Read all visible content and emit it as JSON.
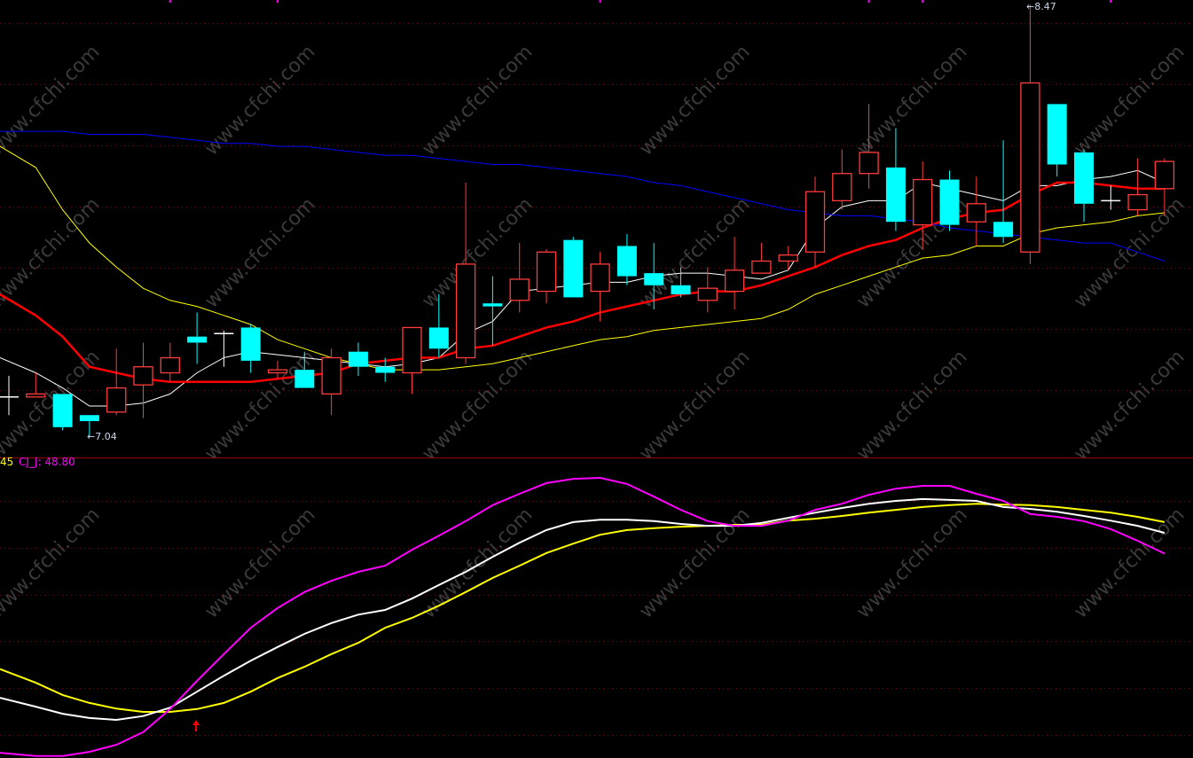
{
  "watermark": "www.cfchi.com",
  "colors": {
    "background": "#000000",
    "grid": "#800000",
    "separator": "#990000",
    "up_candle": "#ff3b3b",
    "down_candle": "#00ffff",
    "doji": "#ffffff",
    "ma_white": "#ffffff",
    "ma_red": "#ff0000",
    "ma_yellow": "#ffff00",
    "ma_blue": "#0000ff",
    "ind_white": "#ffffff",
    "ind_yellow": "#ffff00",
    "ind_magenta": "#ff00ff",
    "signal_arrow": "#ff0000",
    "extreme_label": "#c8d8ee"
  },
  "labels": {
    "high_label": "8.47",
    "low_label": "7.04",
    "arrow_glyph": "←"
  },
  "legend": {
    "yellow_value_text": "45",
    "j_text": "CJ_J: 48.80"
  },
  "chart_data": [
    {
      "type": "candlestick",
      "title": "",
      "candles": [
        {
          "o": 7.17,
          "h": 7.24,
          "l": 7.11,
          "c": 7.17
        },
        {
          "o": 7.17,
          "h": 7.25,
          "l": 7.17,
          "c": 7.18
        },
        {
          "o": 7.18,
          "h": 7.18,
          "l": 7.06,
          "c": 7.07
        },
        {
          "o": 7.11,
          "h": 7.11,
          "l": 7.04,
          "c": 7.09
        },
        {
          "o": 7.12,
          "h": 7.33,
          "l": 7.11,
          "c": 7.2
        },
        {
          "o": 7.21,
          "h": 7.35,
          "l": 7.1,
          "c": 7.27
        },
        {
          "o": 7.25,
          "h": 7.35,
          "l": 7.22,
          "c": 7.3
        },
        {
          "o": 7.37,
          "h": 7.45,
          "l": 7.28,
          "c": 7.35
        },
        {
          "o": 7.38,
          "h": 7.39,
          "l": 7.27,
          "c": 7.38
        },
        {
          "o": 7.4,
          "h": 7.41,
          "l": 7.25,
          "c": 7.29
        },
        {
          "o": 7.25,
          "h": 7.29,
          "l": 7.23,
          "c": 7.26
        },
        {
          "o": 7.26,
          "h": 7.32,
          "l": 7.2,
          "c": 7.2
        },
        {
          "o": 7.18,
          "h": 7.33,
          "l": 7.11,
          "c": 7.3
        },
        {
          "o": 7.32,
          "h": 7.35,
          "l": 7.24,
          "c": 7.27
        },
        {
          "o": 7.27,
          "h": 7.3,
          "l": 7.22,
          "c": 7.25
        },
        {
          "o": 7.25,
          "h": 7.4,
          "l": 7.18,
          "c": 7.4
        },
        {
          "o": 7.4,
          "h": 7.51,
          "l": 7.3,
          "c": 7.33
        },
        {
          "o": 7.3,
          "h": 7.88,
          "l": 7.28,
          "c": 7.61
        },
        {
          "o": 7.48,
          "h": 7.57,
          "l": 7.34,
          "c": 7.47
        },
        {
          "o": 7.49,
          "h": 7.68,
          "l": 7.45,
          "c": 7.56
        },
        {
          "o": 7.52,
          "h": 7.66,
          "l": 7.48,
          "c": 7.65
        },
        {
          "o": 7.69,
          "h": 7.7,
          "l": 7.5,
          "c": 7.5
        },
        {
          "o": 7.52,
          "h": 7.65,
          "l": 7.42,
          "c": 7.61
        },
        {
          "o": 7.67,
          "h": 7.71,
          "l": 7.54,
          "c": 7.57
        },
        {
          "o": 7.58,
          "h": 7.68,
          "l": 7.46,
          "c": 7.54
        },
        {
          "o": 7.54,
          "h": 7.6,
          "l": 7.5,
          "c": 7.51
        },
        {
          "o": 7.49,
          "h": 7.6,
          "l": 7.45,
          "c": 7.53
        },
        {
          "o": 7.52,
          "h": 7.7,
          "l": 7.46,
          "c": 7.59
        },
        {
          "o": 7.58,
          "h": 7.68,
          "l": 7.58,
          "c": 7.62
        },
        {
          "o": 7.62,
          "h": 7.67,
          "l": 7.59,
          "c": 7.64
        },
        {
          "o": 7.65,
          "h": 7.9,
          "l": 7.6,
          "c": 7.85
        },
        {
          "o": 7.82,
          "h": 7.99,
          "l": 7.79,
          "c": 7.91
        },
        {
          "o": 7.91,
          "h": 8.14,
          "l": 7.86,
          "c": 7.98
        },
        {
          "o": 7.93,
          "h": 8.06,
          "l": 7.72,
          "c": 7.75
        },
        {
          "o": 7.74,
          "h": 7.95,
          "l": 7.66,
          "c": 7.89
        },
        {
          "o": 7.89,
          "h": 7.92,
          "l": 7.72,
          "c": 7.74
        },
        {
          "o": 7.75,
          "h": 7.9,
          "l": 7.67,
          "c": 7.81
        },
        {
          "o": 7.75,
          "h": 8.02,
          "l": 7.68,
          "c": 7.7
        },
        {
          "o": 7.65,
          "h": 8.47,
          "l": 7.61,
          "c": 8.21
        },
        {
          "o": 8.14,
          "h": 8.14,
          "l": 7.9,
          "c": 7.94
        },
        {
          "o": 7.98,
          "h": 7.99,
          "l": 7.75,
          "c": 7.81
        },
        {
          "o": 7.82,
          "h": 7.87,
          "l": 7.79,
          "c": 7.82
        },
        {
          "o": 7.79,
          "h": 7.96,
          "l": 7.77,
          "c": 7.84
        },
        {
          "o": 7.86,
          "h": 7.96,
          "l": 7.77,
          "c": 7.95
        }
      ],
      "overlays": [
        {
          "color_key": "ma_white",
          "values": [
            7.3,
            7.25,
            7.2,
            7.14,
            7.14,
            7.15,
            7.18,
            7.25,
            7.3,
            7.32,
            7.31,
            7.3,
            7.29,
            7.28,
            7.27,
            7.28,
            7.3,
            7.38,
            7.42,
            7.52,
            7.53,
            7.54,
            7.55,
            7.55,
            7.57,
            7.58,
            7.58,
            7.57,
            7.56,
            7.59,
            7.73,
            7.8,
            7.82,
            7.82,
            7.88,
            7.86,
            7.84,
            7.82,
            7.87,
            7.87,
            7.89,
            7.9,
            7.92,
            7.88
          ]
        },
        {
          "color_key": "ma_red",
          "values": [
            7.51,
            7.44,
            7.37,
            7.27,
            7.25,
            7.23,
            7.22,
            7.22,
            7.22,
            7.22,
            7.23,
            7.24,
            7.25,
            7.28,
            7.29,
            7.3,
            7.3,
            7.33,
            7.34,
            7.37,
            7.4,
            7.42,
            7.45,
            7.47,
            7.49,
            7.51,
            7.52,
            7.52,
            7.54,
            7.57,
            7.6,
            7.64,
            7.67,
            7.69,
            7.73,
            7.76,
            7.78,
            7.79,
            7.84,
            7.88,
            7.88,
            7.87,
            7.86,
            7.86
          ]
        },
        {
          "color_key": "ma_yellow",
          "values": [
            8.0,
            7.93,
            7.79,
            7.68,
            7.6,
            7.53,
            7.49,
            7.47,
            7.44,
            7.41,
            7.36,
            7.33,
            7.3,
            7.28,
            7.26,
            7.26,
            7.26,
            7.27,
            7.28,
            7.3,
            7.32,
            7.34,
            7.36,
            7.37,
            7.39,
            7.4,
            7.41,
            7.42,
            7.43,
            7.46,
            7.51,
            7.54,
            7.57,
            7.6,
            7.63,
            7.64,
            7.67,
            7.67,
            7.71,
            7.73,
            7.74,
            7.75,
            7.77,
            7.78
          ]
        },
        {
          "color_key": "ma_blue",
          "values": [
            8.05,
            8.05,
            8.05,
            8.04,
            8.04,
            8.04,
            8.03,
            8.02,
            8.01,
            8.01,
            8.0,
            8.0,
            7.99,
            7.98,
            7.97,
            7.97,
            7.96,
            7.95,
            7.94,
            7.94,
            7.93,
            7.92,
            7.91,
            7.9,
            7.88,
            7.87,
            7.85,
            7.83,
            7.81,
            7.79,
            7.78,
            7.77,
            7.77,
            7.76,
            7.75,
            7.73,
            7.72,
            7.71,
            7.7,
            7.69,
            7.68,
            7.68,
            7.65,
            7.62
          ]
        }
      ],
      "high_marker": {
        "index": 38,
        "value": 8.47
      },
      "low_marker": {
        "index": 3,
        "value": 7.04
      },
      "top_markers": [
        6,
        10,
        22,
        32,
        34,
        41
      ],
      "grid": true
    },
    {
      "type": "line",
      "title": "",
      "series": [
        {
          "name": "CJ_J",
          "color_key": "ind_magenta",
          "values": [
            6.4,
            5.7,
            5.7,
            6.6,
            8.1,
            10.8,
            15.7,
            21.7,
            27.4,
            33.0,
            37.2,
            40.6,
            43.0,
            44.9,
            46.2,
            49.6,
            52.6,
            55.7,
            59.1,
            61.5,
            63.8,
            64.7,
            64.9,
            63.6,
            60.9,
            58.1,
            55.7,
            54.7,
            54.7,
            55.8,
            58.1,
            59.4,
            61.3,
            62.6,
            63.2,
            63.2,
            61.5,
            60.0,
            57.2,
            56.6,
            55.7,
            54.0,
            51.5,
            48.8
          ]
        },
        {
          "color_key": "ind_white",
          "values": [
            18.1,
            16.2,
            14.7,
            13.8,
            13.4,
            14.2,
            16.0,
            19.4,
            22.8,
            26.0,
            28.9,
            31.7,
            34.0,
            35.8,
            36.8,
            39.2,
            42.1,
            44.9,
            48.1,
            51.1,
            53.8,
            55.5,
            56.0,
            56.0,
            55.7,
            55.1,
            54.7,
            54.7,
            55.3,
            56.4,
            57.5,
            58.5,
            59.4,
            60.0,
            60.4,
            60.2,
            60.0,
            58.7,
            58.3,
            57.7,
            56.8,
            55.8,
            54.7,
            53.2
          ]
        },
        {
          "color_key": "ind_yellow",
          "values": [
            24.2,
            21.3,
            18.7,
            17.0,
            15.8,
            15.1,
            15.1,
            15.7,
            17.0,
            19.4,
            22.3,
            24.7,
            27.4,
            29.8,
            33.0,
            35.1,
            37.7,
            40.6,
            43.6,
            46.2,
            48.9,
            50.9,
            52.8,
            53.8,
            54.2,
            54.5,
            54.7,
            54.9,
            54.9,
            55.8,
            56.2,
            56.8,
            57.5,
            58.1,
            58.7,
            59.1,
            59.4,
            59.2,
            59.1,
            58.7,
            58.1,
            57.5,
            56.6,
            55.5
          ]
        }
      ],
      "buy_signal_index": 7,
      "grid": true
    }
  ]
}
